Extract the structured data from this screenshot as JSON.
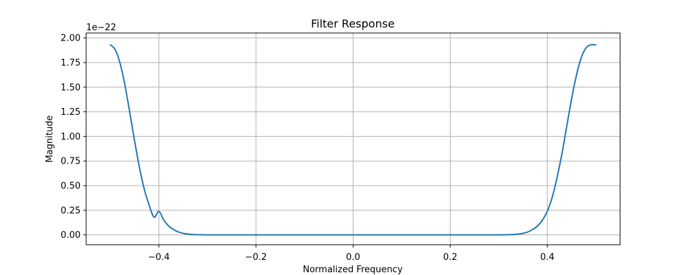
{
  "chart_data": {
    "type": "line",
    "title": "Filter Response",
    "xlabel": "Normalized Frequency",
    "ylabel": "Magnitude",
    "offset_label": "1e−22",
    "y_scale_factor": 1e-22,
    "xlim": [
      -0.55,
      0.55
    ],
    "ylim": [
      -0.1,
      2.05
    ],
    "grid": true,
    "x_ticks": [
      -0.4,
      -0.2,
      0.0,
      0.2,
      0.4
    ],
    "x_tick_labels": [
      "−0.4",
      "−0.2",
      "0.0",
      "0.2",
      "0.4"
    ],
    "y_ticks": [
      0.0,
      0.25,
      0.5,
      0.75,
      1.0,
      1.25,
      1.5,
      1.75,
      2.0
    ],
    "y_tick_labels": [
      "0.00",
      "0.25",
      "0.50",
      "0.75",
      "1.00",
      "1.25",
      "1.50",
      "1.75",
      "2.00"
    ],
    "series": [
      {
        "color": "#1f77b4",
        "x": [
          -0.5,
          -0.49,
          -0.48,
          -0.47,
          -0.46,
          -0.45,
          -0.44,
          -0.43,
          -0.42,
          -0.41,
          -0.4,
          -0.39,
          -0.38,
          -0.37,
          -0.36,
          -0.35,
          -0.34,
          -0.33,
          -0.32,
          -0.3,
          -0.25,
          -0.2,
          -0.1,
          0.0,
          0.1,
          0.2,
          0.25,
          0.3,
          0.32,
          0.33,
          0.34,
          0.35,
          0.36,
          0.37,
          0.38,
          0.39,
          0.4,
          0.41,
          0.42,
          0.43,
          0.44,
          0.45,
          0.46,
          0.47,
          0.48,
          0.49,
          0.5
        ],
        "y": [
          1.93,
          1.88,
          1.74,
          1.52,
          1.24,
          0.95,
          0.68,
          0.46,
          0.3,
          0.18,
          0.24,
          0.15,
          0.09,
          0.055,
          0.03,
          0.016,
          0.008,
          0.004,
          0.002,
          0.0005,
          0.0,
          0.0,
          0.0,
          0.0,
          0.0,
          0.0,
          0.0,
          0.0005,
          0.002,
          0.004,
          0.008,
          0.016,
          0.03,
          0.055,
          0.09,
          0.15,
          0.24,
          0.38,
          0.58,
          0.82,
          1.1,
          1.38,
          1.62,
          1.8,
          1.9,
          1.93,
          1.93
        ]
      }
    ]
  }
}
